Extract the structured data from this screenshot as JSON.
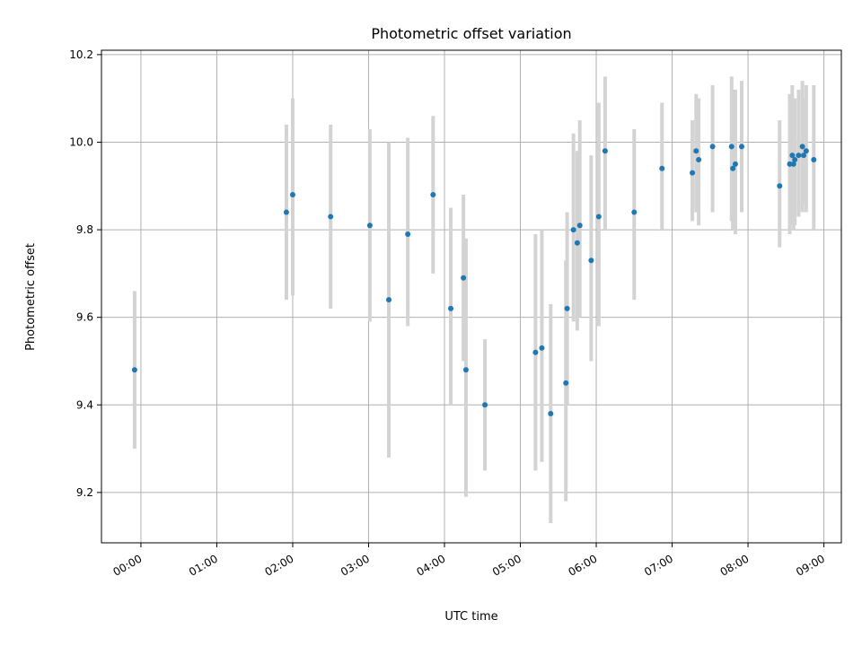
{
  "chart_data": {
    "type": "scatter",
    "title": "Photometric offset variation",
    "xlabel": "UTC time",
    "ylabel": "Photometric offset",
    "grid": true,
    "xlim_hours": [
      -0.52,
      9.23
    ],
    "ylim": [
      9.085,
      10.21
    ],
    "x_ticks": [
      "00:00",
      "01:00",
      "02:00",
      "03:00",
      "04:00",
      "05:00",
      "06:00",
      "07:00",
      "08:00",
      "09:00"
    ],
    "y_ticks": [
      "9.2",
      "9.4",
      "9.6",
      "9.8",
      "10.0",
      "10.2"
    ],
    "colors": {
      "point": "#1f77b4",
      "errorbar": "#d3d3d3",
      "grid": "#b0b0b0"
    },
    "series": [
      {
        "x_time": [
          "23:55",
          "01:55",
          "02:00",
          "02:30",
          "03:01",
          "03:16",
          "03:31",
          "03:51",
          "04:05",
          "04:15",
          "04:17",
          "04:32",
          "05:12",
          "05:17",
          "05:24",
          "05:36",
          "05:37",
          "05:42",
          "05:45",
          "05:47",
          "05:56",
          "06:02",
          "06:07",
          "06:30",
          "06:52",
          "07:16",
          "07:19",
          "07:21",
          "07:32",
          "07:47",
          "07:48",
          "07:50",
          "07:55",
          "08:25",
          "08:33",
          "08:35",
          "08:36",
          "08:37",
          "08:40",
          "08:43",
          "08:44",
          "08:46",
          "08:52"
        ],
        "y": [
          9.48,
          9.84,
          9.88,
          9.83,
          9.81,
          9.64,
          9.79,
          9.88,
          9.62,
          9.69,
          9.48,
          9.4,
          9.52,
          9.53,
          9.38,
          9.45,
          9.62,
          9.8,
          9.77,
          9.81,
          9.73,
          9.83,
          9.98,
          9.84,
          9.94,
          9.93,
          9.98,
          9.96,
          9.99,
          9.99,
          9.94,
          9.95,
          9.99,
          9.9,
          9.95,
          9.97,
          9.95,
          9.96,
          9.97,
          9.99,
          9.97,
          9.98,
          9.96
        ],
        "y_low": [
          9.3,
          9.64,
          9.65,
          9.62,
          9.59,
          9.28,
          9.58,
          9.7,
          9.4,
          9.5,
          9.19,
          9.25,
          9.25,
          9.27,
          9.13,
          9.18,
          9.4,
          9.59,
          9.57,
          9.6,
          9.5,
          9.58,
          9.8,
          9.64,
          9.8,
          9.82,
          9.84,
          9.81,
          9.84,
          9.82,
          9.8,
          9.79,
          9.84,
          9.76,
          9.79,
          9.81,
          9.8,
          9.81,
          9.83,
          9.84,
          9.86,
          9.84,
          9.8
        ],
        "y_high": [
          9.66,
          10.04,
          10.1,
          10.04,
          10.03,
          10.0,
          10.01,
          10.06,
          9.85,
          9.88,
          9.78,
          9.55,
          9.79,
          9.8,
          9.63,
          9.73,
          9.84,
          10.02,
          9.98,
          10.05,
          9.97,
          10.09,
          10.15,
          10.03,
          10.09,
          10.05,
          10.11,
          10.1,
          10.13,
          10.15,
          10.12,
          10.12,
          10.14,
          10.05,
          10.11,
          10.13,
          10.09,
          10.1,
          10.12,
          10.14,
          10.1,
          10.13,
          10.13
        ]
      }
    ]
  }
}
